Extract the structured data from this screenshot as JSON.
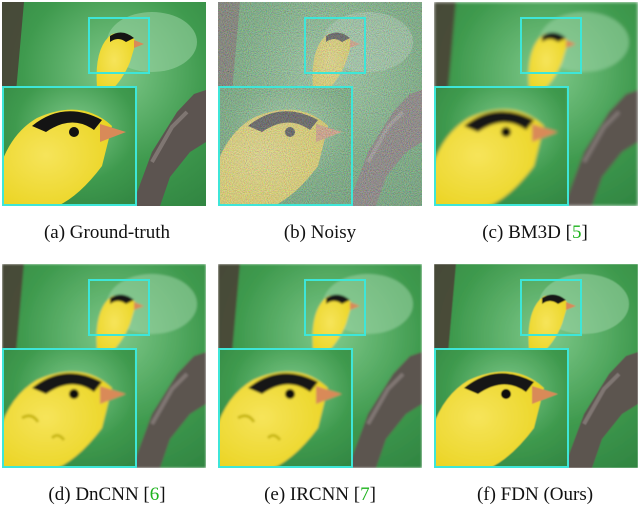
{
  "figure": {
    "panels": [
      {
        "id": "a",
        "label": "(a)",
        "method": "Ground-truth",
        "ref_open": "",
        "ref": "",
        "ref_close": "",
        "noise": 0,
        "blur": 0,
        "artifacts": false
      },
      {
        "id": "b",
        "label": "(b)",
        "method": "Noisy",
        "ref_open": "",
        "ref": "",
        "ref_close": "",
        "noise": 1,
        "blur": 0,
        "artifacts": false
      },
      {
        "id": "c",
        "label": "(c)",
        "method": "BM3D",
        "ref_open": "[",
        "ref": "5",
        "ref_close": "]",
        "noise": 0,
        "blur": 1.6,
        "artifacts": false
      },
      {
        "id": "d",
        "label": "(d)",
        "method": "DnCNN",
        "ref_open": "[",
        "ref": "6",
        "ref_close": "]",
        "noise": 0,
        "blur": 1.0,
        "artifacts": true
      },
      {
        "id": "e",
        "label": "(e)",
        "method": "IRCNN",
        "ref_open": "[",
        "ref": "7",
        "ref_close": "]",
        "noise": 0,
        "blur": 1.0,
        "artifacts": true
      },
      {
        "id": "f",
        "label": "(f)",
        "method": "FDN",
        "ref_open": "",
        "ref": "",
        "ref_close": "",
        "suffix": "(Ours)",
        "noise": 0,
        "blur": 0.5,
        "artifacts": false
      }
    ],
    "colors": {
      "background_green": "#3f9a4e",
      "bird_yellow": "#e9d21a",
      "cap_black": "#141414",
      "beak_orange": "#d98a58",
      "branch_gray": "#5c5450",
      "zoom_box": "#3ee6d8",
      "ref_green": "#1db31d"
    }
  }
}
